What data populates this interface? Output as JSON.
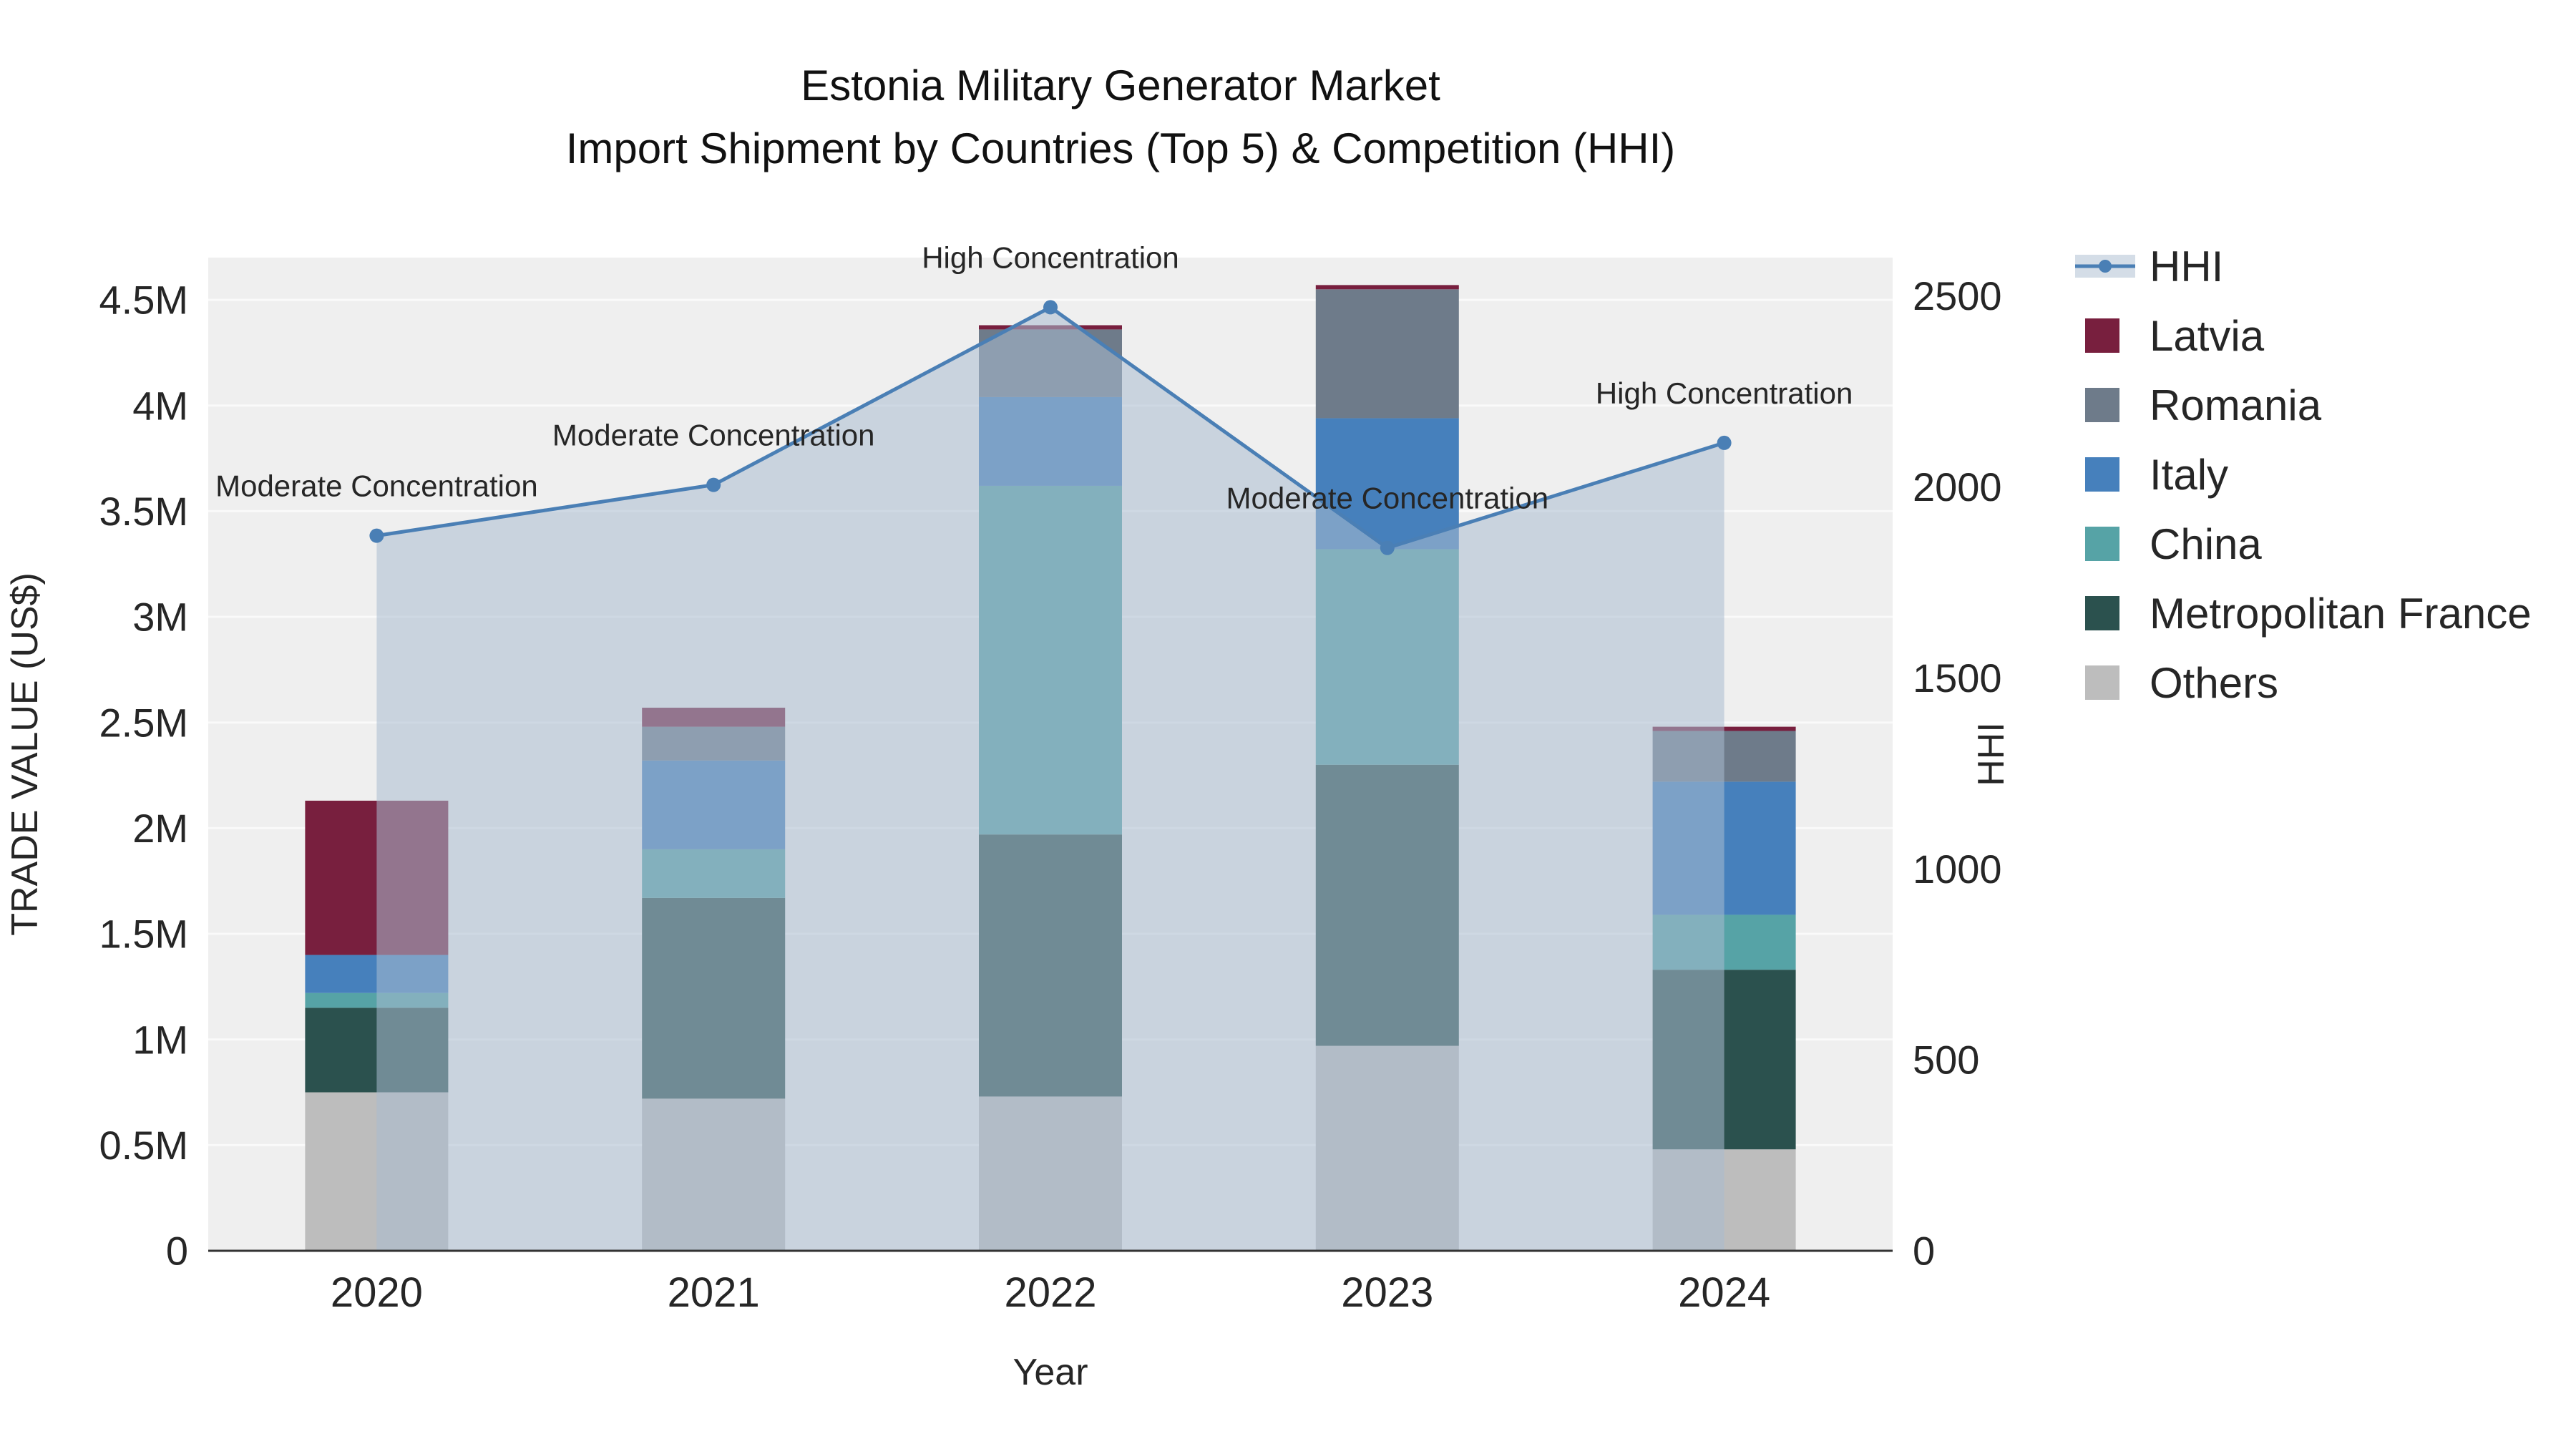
{
  "chart_data": {
    "type": "bar",
    "combo": "stacked_bar_with_line",
    "title": "Estonia Military Generator Market",
    "subtitle": "Import Shipment by Countries (Top 5) & Competition (HHI)",
    "xlabel": "Year",
    "ylabel_left": "TRADE VALUE (US$)",
    "ylabel_right": "HHI",
    "categories": [
      "2020",
      "2021",
      "2022",
      "2023",
      "2024"
    ],
    "bar_series": [
      {
        "name": "Others",
        "color": "#bdbdbd",
        "values": [
          750000,
          720000,
          730000,
          970000,
          480000
        ]
      },
      {
        "name": "Metropolitan France",
        "color": "#2b514e",
        "values": [
          400000,
          950000,
          1240000,
          1330000,
          850000
        ]
      },
      {
        "name": "China",
        "color": "#56a3a6",
        "values": [
          70000,
          230000,
          1650000,
          1020000,
          260000
        ]
      },
      {
        "name": "Italy",
        "color": "#4680bc",
        "values": [
          180000,
          420000,
          420000,
          620000,
          630000
        ]
      },
      {
        "name": "Romania",
        "color": "#6e7b8a",
        "values": [
          0,
          160000,
          320000,
          610000,
          240000
        ]
      },
      {
        "name": "Latvia",
        "color": "#781f3e",
        "values": [
          730000,
          90000,
          20000,
          20000,
          20000
        ]
      }
    ],
    "line_series": {
      "name": "HHI",
      "color": "#4a7fb5",
      "area_fill": "#a9bcd0",
      "area_opacity": 0.55,
      "values": [
        1872,
        2005,
        2470,
        1840,
        2115
      ]
    },
    "annotations": [
      "Moderate Concentration",
      "Moderate Concentration",
      "High Concentration",
      "Moderate Concentration",
      "High Concentration"
    ],
    "left_axis": {
      "max": 4700000,
      "ticks": [
        0,
        500000,
        1000000,
        1500000,
        2000000,
        2500000,
        3000000,
        3500000,
        4000000,
        4500000
      ],
      "tick_labels": [
        "0",
        "0.5M",
        "1M",
        "1.5M",
        "2M",
        "2.5M",
        "3M",
        "3.5M",
        "4M",
        "4.5M"
      ]
    },
    "right_axis": {
      "max": 2600,
      "ticks": [
        0,
        500,
        1000,
        1500,
        2000,
        2500
      ],
      "tick_labels": [
        "0",
        "500",
        "1000",
        "1500",
        "2000",
        "2500"
      ]
    },
    "legend": {
      "items": [
        "HHI",
        "Latvia",
        "Romania",
        "Italy",
        "China",
        "Metropolitan France",
        "Others"
      ]
    },
    "plot_bg": "#efefef",
    "grid_color": "#fafafa",
    "axis_line_color": "#333333",
    "grid_on": true,
    "legend_position": "right-top"
  }
}
